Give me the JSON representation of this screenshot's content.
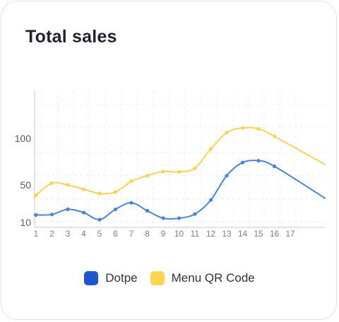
{
  "title": "Total sales",
  "chart_data": {
    "type": "line",
    "title": "Total sales",
    "xlabel": "",
    "ylabel": "",
    "x": [
      1,
      2,
      3,
      4,
      5,
      6,
      7,
      8,
      9,
      10,
      11,
      12,
      13,
      14,
      15,
      16,
      17
    ],
    "y_ticks": [
      10,
      50,
      100
    ],
    "ylim": [
      5,
      140
    ],
    "grid": true,
    "smooth": true,
    "legend_position": "bottom",
    "series": [
      {
        "name": "Dotpe",
        "color": "#4a86d0",
        "legend_color": "#2154cf",
        "values": [
          18,
          18.5,
          24,
          20.5,
          13,
          24,
          31,
          22.5,
          14.5,
          14.5,
          19,
          34,
          60,
          74,
          76,
          70,
          36
        ]
      },
      {
        "name": "Menu QR Code",
        "color": "#f7d35a",
        "legend_color": "#ffd44f",
        "values": [
          39,
          52,
          50,
          45.5,
          41,
          42.5,
          54,
          60,
          64.5,
          64,
          68,
          88.5,
          106,
          111,
          110,
          102,
          72
        ]
      }
    ]
  }
}
